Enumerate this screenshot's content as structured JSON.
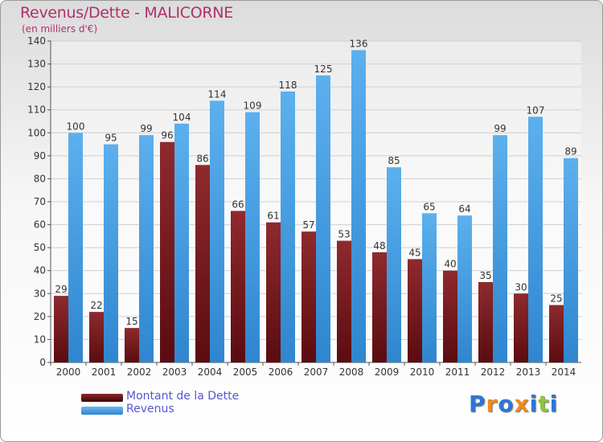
{
  "title": "Revenus/Dette - MALICORNE",
  "subtitle": "(en milliers d'€)",
  "colors": {
    "dette": "#7a1e22",
    "revenus": "#4aa0e0",
    "title": "#b0306a",
    "legend_text": "#5a55d0"
  },
  "logo": {
    "text": "Proxiti",
    "letters": [
      "P",
      "r",
      "o",
      "x",
      "i",
      "t",
      "i"
    ],
    "colors": [
      "#2e75d8",
      "#f08a1c",
      "#2e75d8",
      "#f08a1c",
      "#2e75d8",
      "#8cc63f",
      "#2e75d8"
    ]
  },
  "legend": [
    {
      "label": "Montant de la Dette",
      "color": "#5a0e10"
    },
    {
      "label": "Revenus",
      "color": "#4aa0e0"
    }
  ],
  "chart_data": {
    "type": "bar",
    "title": "Revenus/Dette - MALICORNE",
    "subtitle": "(en milliers d'€)",
    "categories": [
      "2000",
      "2001",
      "2002",
      "2003",
      "2004",
      "2005",
      "2006",
      "2007",
      "2008",
      "2009",
      "2010",
      "2011",
      "2012",
      "2013",
      "2014"
    ],
    "series": [
      {
        "name": "Montant de la Dette",
        "values": [
          29,
          22,
          15,
          96,
          86,
          66,
          61,
          57,
          53,
          48,
          45,
          40,
          35,
          30,
          25
        ]
      },
      {
        "name": "Revenus",
        "values": [
          100,
          95,
          99,
          104,
          114,
          109,
          118,
          125,
          136,
          85,
          65,
          64,
          99,
          107,
          89
        ]
      }
    ],
    "ylim": [
      0,
      140
    ],
    "yticks": [
      0,
      10,
      20,
      30,
      40,
      50,
      60,
      70,
      80,
      90,
      100,
      110,
      120,
      130,
      140
    ],
    "grid": true,
    "legend_position": "bottom-left"
  }
}
